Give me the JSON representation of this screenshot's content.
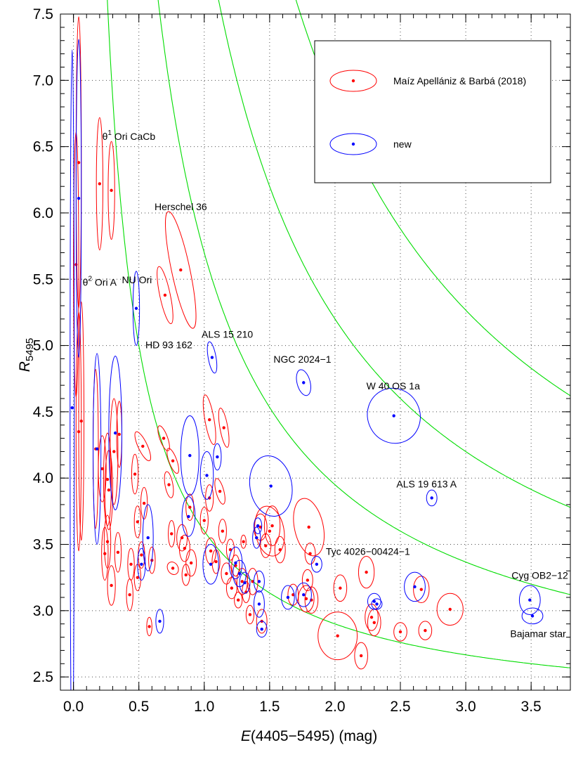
{
  "chart_data": {
    "type": "scatter",
    "xlabel": {
      "italic": "E",
      "rest": "(4405−5495) (mag)"
    },
    "ylabel": {
      "italic": "R",
      "sub": "5495"
    },
    "xlim": [
      -0.1,
      3.8
    ],
    "ylim": [
      2.4,
      7.5
    ],
    "xticks": [
      0.0,
      0.5,
      1.0,
      1.5,
      2.0,
      2.5,
      3.0,
      3.5
    ],
    "xtick_labels": [
      "0.0",
      "0.5",
      "1.0",
      "1.5",
      "2.0",
      "2.5",
      "3.0",
      "3.5"
    ],
    "yticks": [
      2.5,
      3.0,
      3.5,
      4.0,
      4.5,
      5.0,
      5.5,
      6.0,
      6.5,
      7.0,
      7.5
    ],
    "ytick_labels": [
      "2.5",
      "3.0",
      "3.5",
      "4.0",
      "4.5",
      "5.0",
      "5.5",
      "6.0",
      "6.5",
      "7.0",
      "7.5"
    ],
    "grid": true,
    "legend_position": "top-right",
    "colors": {
      "mab": "#ff0000",
      "new": "#0000ff",
      "curves": "#00dd00"
    },
    "curves": [
      {
        "constant": 1.4
      },
      {
        "constant": 3.5
      },
      {
        "constant": 6.0
      },
      {
        "constant": 9.2
      }
    ],
    "series": [
      {
        "name": "Maíz Apellániz & Barbá (2018)",
        "color": "#ff0000",
        "points": [
          {
            "x": 0.2,
            "y": 6.22,
            "ex": 0.025,
            "ey": 0.5,
            "rot": 0
          },
          {
            "x": 0.29,
            "y": 6.17,
            "ex": 0.025,
            "ey": 0.37,
            "rot": 0
          },
          {
            "x": 0.04,
            "y": 6.38,
            "ex": 0.02,
            "ey": 1.1,
            "rot": 0
          },
          {
            "x": 0.02,
            "y": 5.61,
            "ex": 0.02,
            "ey": 1.0,
            "rot": 0
          },
          {
            "x": 0.04,
            "y": 4.35,
            "ex": 0.02,
            "ey": 0.9,
            "rot": 0
          },
          {
            "x": 0.06,
            "y": 4.43,
            "ex": 0.02,
            "ey": 0.9,
            "rot": 0
          },
          {
            "x": 0.82,
            "y": 5.57,
            "ex": 0.07,
            "ey": 0.45,
            "rot": -12
          },
          {
            "x": 0.7,
            "y": 5.38,
            "ex": 0.04,
            "ey": 0.22,
            "rot": -12
          },
          {
            "x": 1.04,
            "y": 4.44,
            "ex": 0.035,
            "ey": 0.19,
            "rot": -10
          },
          {
            "x": 1.15,
            "y": 4.38,
            "ex": 0.03,
            "ey": 0.15,
            "rot": -10
          },
          {
            "x": 0.17,
            "y": 4.22,
            "ex": 0.02,
            "ey": 0.6,
            "rot": 0
          },
          {
            "x": 0.31,
            "y": 4.2,
            "ex": 0.03,
            "ey": 0.4,
            "rot": 0
          },
          {
            "x": 0.35,
            "y": 4.33,
            "ex": 0.02,
            "ey": 0.25,
            "rot": 0
          },
          {
            "x": 0.27,
            "y": 3.91,
            "ex": 0.03,
            "ey": 0.3,
            "rot": 0
          },
          {
            "x": 0.22,
            "y": 4.07,
            "ex": 0.03,
            "ey": 0.25,
            "rot": 0
          },
          {
            "x": 0.26,
            "y": 3.99,
            "ex": 0.03,
            "ey": 0.35,
            "rot": 0
          },
          {
            "x": 0.53,
            "y": 4.24,
            "ex": 0.035,
            "ey": 0.12,
            "rot": -25
          },
          {
            "x": 0.69,
            "y": 4.3,
            "ex": 0.03,
            "ey": 0.1,
            "rot": -20
          },
          {
            "x": 0.76,
            "y": 4.13,
            "ex": 0.03,
            "ey": 0.1,
            "rot": -20
          },
          {
            "x": 0.73,
            "y": 3.95,
            "ex": 0.03,
            "ey": 0.1,
            "rot": -10
          },
          {
            "x": 0.47,
            "y": 4.03,
            "ex": 0.025,
            "ey": 0.15,
            "rot": 0
          },
          {
            "x": 0.49,
            "y": 3.67,
            "ex": 0.025,
            "ey": 0.12,
            "rot": 0
          },
          {
            "x": 0.54,
            "y": 3.81,
            "ex": 0.025,
            "ey": 0.12,
            "rot": 0
          },
          {
            "x": 0.26,
            "y": 3.52,
            "ex": 0.025,
            "ey": 0.2,
            "rot": 0
          },
          {
            "x": 0.24,
            "y": 3.43,
            "ex": 0.025,
            "ey": 0.2,
            "rot": 0
          },
          {
            "x": 0.34,
            "y": 3.44,
            "ex": 0.025,
            "ey": 0.15,
            "rot": 0
          },
          {
            "x": 0.29,
            "y": 3.19,
            "ex": 0.03,
            "ey": 0.15,
            "rot": 0
          },
          {
            "x": 0.44,
            "y": 3.35,
            "ex": 0.025,
            "ey": 0.12,
            "rot": 0
          },
          {
            "x": 0.43,
            "y": 3.12,
            "ex": 0.025,
            "ey": 0.12,
            "rot": 0
          },
          {
            "x": 0.52,
            "y": 3.42,
            "ex": 0.025,
            "ey": 0.1,
            "rot": 0
          },
          {
            "x": 0.49,
            "y": 3.25,
            "ex": 0.025,
            "ey": 0.1,
            "rot": 0
          },
          {
            "x": 0.6,
            "y": 3.38,
            "ex": 0.025,
            "ey": 0.1,
            "rot": 0
          },
          {
            "x": 0.75,
            "y": 3.58,
            "ex": 0.025,
            "ey": 0.1,
            "rot": 0
          },
          {
            "x": 0.58,
            "y": 2.88,
            "ex": 0.02,
            "ey": 0.07,
            "rot": 0
          },
          {
            "x": 0.76,
            "y": 3.32,
            "ex": 0.04,
            "ey": 0.05,
            "rot": -30
          },
          {
            "x": 0.89,
            "y": 3.78,
            "ex": 0.03,
            "ey": 0.1,
            "rot": 0
          },
          {
            "x": 0.83,
            "y": 3.55,
            "ex": 0.04,
            "ey": 0.1,
            "rot": 0
          },
          {
            "x": 0.85,
            "y": 3.47,
            "ex": 0.04,
            "ey": 0.1,
            "rot": 0
          },
          {
            "x": 0.9,
            "y": 3.36,
            "ex": 0.04,
            "ey": 0.1,
            "rot": 0
          },
          {
            "x": 0.86,
            "y": 3.27,
            "ex": 0.03,
            "ey": 0.08,
            "rot": 0
          },
          {
            "x": 1.0,
            "y": 3.68,
            "ex": 0.03,
            "ey": 0.1,
            "rot": 0
          },
          {
            "x": 1.04,
            "y": 3.85,
            "ex": 0.03,
            "ey": 0.1,
            "rot": 0
          },
          {
            "x": 1.12,
            "y": 3.9,
            "ex": 0.03,
            "ey": 0.1,
            "rot": -15
          },
          {
            "x": 1.05,
            "y": 3.45,
            "ex": 0.04,
            "ey": 0.1,
            "rot": 0
          },
          {
            "x": 1.09,
            "y": 3.37,
            "ex": 0.03,
            "ey": 0.09,
            "rot": 0
          },
          {
            "x": 1.14,
            "y": 3.6,
            "ex": 0.03,
            "ey": 0.09,
            "rot": 0
          },
          {
            "x": 1.2,
            "y": 3.46,
            "ex": 0.03,
            "ey": 0.08,
            "rot": 0
          },
          {
            "x": 1.17,
            "y": 3.28,
            "ex": 0.04,
            "ey": 0.08,
            "rot": 0
          },
          {
            "x": 1.21,
            "y": 3.17,
            "ex": 0.04,
            "ey": 0.08,
            "rot": 0
          },
          {
            "x": 1.24,
            "y": 3.34,
            "ex": 0.03,
            "ey": 0.08,
            "rot": 0
          },
          {
            "x": 1.26,
            "y": 3.08,
            "ex": 0.03,
            "ey": 0.06,
            "rot": 0
          },
          {
            "x": 1.29,
            "y": 3.22,
            "ex": 0.04,
            "ey": 0.1,
            "rot": 0
          },
          {
            "x": 1.32,
            "y": 3.14,
            "ex": 0.03,
            "ey": 0.08,
            "rot": 0
          },
          {
            "x": 1.35,
            "y": 2.97,
            "ex": 0.03,
            "ey": 0.07,
            "rot": 0
          },
          {
            "x": 1.37,
            "y": 3.22,
            "ex": 0.04,
            "ey": 0.1,
            "rot": 0
          },
          {
            "x": 1.43,
            "y": 3.63,
            "ex": 0.05,
            "ey": 0.1,
            "rot": 0
          },
          {
            "x": 1.44,
            "y": 2.92,
            "ex": 0.04,
            "ey": 0.09,
            "rot": 0
          },
          {
            "x": 1.3,
            "y": 3.52,
            "ex": 0.02,
            "ey": 0.05,
            "rot": 0
          },
          {
            "x": 1.47,
            "y": 3.49,
            "ex": 0.04,
            "ey": 0.09,
            "rot": 0
          },
          {
            "x": 1.5,
            "y": 3.6,
            "ex": 0.11,
            "ey": 0.19,
            "rot": -10
          },
          {
            "x": 1.52,
            "y": 3.64,
            "ex": 0.06,
            "ey": 0.15,
            "rot": 0
          },
          {
            "x": 1.58,
            "y": 3.46,
            "ex": 0.04,
            "ey": 0.1,
            "rot": 0
          },
          {
            "x": 1.68,
            "y": 3.12,
            "ex": 0.04,
            "ey": 0.08,
            "rot": 0
          },
          {
            "x": 1.78,
            "y": 3.09,
            "ex": 0.06,
            "ey": 0.1,
            "rot": 0
          },
          {
            "x": 1.8,
            "y": 3.63,
            "ex": 0.11,
            "ey": 0.22,
            "rot": -12
          },
          {
            "x": 1.81,
            "y": 3.43,
            "ex": 0.04,
            "ey": 0.08,
            "rot": 0
          },
          {
            "x": 1.82,
            "y": 3.08,
            "ex": 0.05,
            "ey": 0.1,
            "rot": 0
          },
          {
            "x": 1.79,
            "y": 3.23,
            "ex": 0.04,
            "ey": 0.08,
            "rot": 0
          },
          {
            "x": 2.04,
            "y": 3.17,
            "ex": 0.05,
            "ey": 0.1,
            "rot": 0
          },
          {
            "x": 2.2,
            "y": 2.66,
            "ex": 0.05,
            "ey": 0.1,
            "rot": 0
          },
          {
            "x": 2.02,
            "y": 2.81,
            "ex": 0.15,
            "ey": 0.18,
            "rot": 0
          },
          {
            "x": 2.24,
            "y": 3.29,
            "ex": 0.06,
            "ey": 0.12,
            "rot": 0
          },
          {
            "x": 2.28,
            "y": 2.95,
            "ex": 0.05,
            "ey": 0.1,
            "rot": 0
          },
          {
            "x": 2.3,
            "y": 2.91,
            "ex": 0.05,
            "ey": 0.1,
            "rot": 0
          },
          {
            "x": 2.5,
            "y": 2.84,
            "ex": 0.05,
            "ey": 0.07,
            "rot": 0
          },
          {
            "x": 2.66,
            "y": 3.16,
            "ex": 0.06,
            "ey": 0.1,
            "rot": 0
          },
          {
            "x": 2.69,
            "y": 2.85,
            "ex": 0.05,
            "ey": 0.07,
            "rot": 0
          },
          {
            "x": 2.88,
            "y": 3.01,
            "ex": 0.1,
            "ey": 0.12,
            "rot": 0
          }
        ]
      },
      {
        "name": "new",
        "color": "#0000ff",
        "points": [
          {
            "x": 0.04,
            "y": 6.11,
            "ex": 0.02,
            "ey": 1.2,
            "rot": 0
          },
          {
            "x": -0.01,
            "y": 4.53,
            "ex": 0.01,
            "ey": 2.7,
            "rot": 0
          },
          {
            "x": 0.48,
            "y": 5.28,
            "ex": 0.025,
            "ey": 0.28,
            "rot": 0
          },
          {
            "x": 1.06,
            "y": 4.91,
            "ex": 0.03,
            "ey": 0.12,
            "rot": -10
          },
          {
            "x": 1.76,
            "y": 4.72,
            "ex": 0.05,
            "ey": 0.1,
            "rot": -15
          },
          {
            "x": 2.45,
            "y": 4.47,
            "ex": 0.2,
            "ey": 0.21,
            "rot": -25
          },
          {
            "x": 2.74,
            "y": 3.85,
            "ex": 0.04,
            "ey": 0.06,
            "rot": 0
          },
          {
            "x": 0.18,
            "y": 4.22,
            "ex": 0.03,
            "ey": 0.72,
            "rot": 0
          },
          {
            "x": 0.32,
            "y": 4.34,
            "ex": 0.05,
            "ey": 0.58,
            "rot": 0
          },
          {
            "x": 0.57,
            "y": 3.55,
            "ex": 0.04,
            "ey": 0.25,
            "rot": 0
          },
          {
            "x": 0.52,
            "y": 3.35,
            "ex": 0.03,
            "ey": 0.12,
            "rot": 0
          },
          {
            "x": 0.66,
            "y": 2.92,
            "ex": 0.03,
            "ey": 0.09,
            "rot": 0
          },
          {
            "x": 0.89,
            "y": 4.17,
            "ex": 0.07,
            "ey": 0.3,
            "rot": 0
          },
          {
            "x": 0.88,
            "y": 3.71,
            "ex": 0.05,
            "ey": 0.15,
            "rot": 0
          },
          {
            "x": 1.02,
            "y": 4.02,
            "ex": 0.05,
            "ey": 0.18,
            "rot": 0
          },
          {
            "x": 1.1,
            "y": 4.16,
            "ex": 0.03,
            "ey": 0.1,
            "rot": 0
          },
          {
            "x": 1.05,
            "y": 3.35,
            "ex": 0.06,
            "ey": 0.15,
            "rot": 0
          },
          {
            "x": 1.24,
            "y": 3.36,
            "ex": 0.05,
            "ey": 0.12,
            "rot": 0
          },
          {
            "x": 1.27,
            "y": 3.28,
            "ex": 0.05,
            "ey": 0.1,
            "rot": 0
          },
          {
            "x": 1.31,
            "y": 3.21,
            "ex": 0.04,
            "ey": 0.08,
            "rot": 0
          },
          {
            "x": 1.4,
            "y": 3.55,
            "ex": 0.03,
            "ey": 0.08,
            "rot": 0
          },
          {
            "x": 1.42,
            "y": 3.22,
            "ex": 0.04,
            "ey": 0.08,
            "rot": 0
          },
          {
            "x": 1.42,
            "y": 3.05,
            "ex": 0.04,
            "ey": 0.1,
            "rot": 0
          },
          {
            "x": 1.44,
            "y": 2.86,
            "ex": 0.04,
            "ey": 0.06,
            "rot": 0
          },
          {
            "x": 1.51,
            "y": 3.94,
            "ex": 0.16,
            "ey": 0.23,
            "rot": -10
          },
          {
            "x": 1.41,
            "y": 3.64,
            "ex": 0.03,
            "ey": 0.06,
            "rot": 0
          },
          {
            "x": 1.64,
            "y": 3.1,
            "ex": 0.05,
            "ey": 0.09,
            "rot": 0
          },
          {
            "x": 1.76,
            "y": 3.12,
            "ex": 0.06,
            "ey": 0.09,
            "rot": 0
          },
          {
            "x": 1.86,
            "y": 3.35,
            "ex": 0.04,
            "ey": 0.06,
            "rot": 0
          },
          {
            "x": 2.3,
            "y": 3.07,
            "ex": 0.05,
            "ey": 0.06,
            "rot": 0
          },
          {
            "x": 2.32,
            "y": 3.05,
            "ex": 0.04,
            "ey": 0.04,
            "rot": 0
          },
          {
            "x": 2.61,
            "y": 3.18,
            "ex": 0.08,
            "ey": 0.11,
            "rot": 0
          },
          {
            "x": 3.49,
            "y": 3.08,
            "ex": 0.08,
            "ey": 0.11,
            "rot": 0
          },
          {
            "x": 3.51,
            "y": 2.96,
            "ex": 0.08,
            "ey": 0.06,
            "rot": 0
          }
        ]
      }
    ],
    "annotations": [
      {
        "text": "θ",
        "sup": "1",
        "tail": " Ori CaCb",
        "x": 0.22,
        "y": 6.55
      },
      {
        "text": "θ",
        "sup": "2",
        "tail": " Ori A",
        "x": 0.07,
        "y": 5.45
      },
      {
        "text": "Herschel 36",
        "x": 0.62,
        "y": 6.02
      },
      {
        "text": "NU Ori",
        "x": 0.37,
        "y": 5.47
      },
      {
        "text": "HD 93 162",
        "x": 0.55,
        "y": 4.98
      },
      {
        "text": "ALS 15 210",
        "x": 0.98,
        "y": 5.06
      },
      {
        "text": "NGC 2024−1",
        "x": 1.53,
        "y": 4.87
      },
      {
        "text": "W 40 OS 1a",
        "x": 2.24,
        "y": 4.67
      },
      {
        "text": "ALS 19 613 A",
        "x": 2.47,
        "y": 3.93
      },
      {
        "text": "Tyc 4026−00424−1",
        "x": 1.93,
        "y": 3.42
      },
      {
        "text": "Cyg OB2−12",
        "x": 3.35,
        "y": 3.24
      },
      {
        "text": "Bajamar star",
        "x": 3.34,
        "y": 2.8
      }
    ]
  }
}
